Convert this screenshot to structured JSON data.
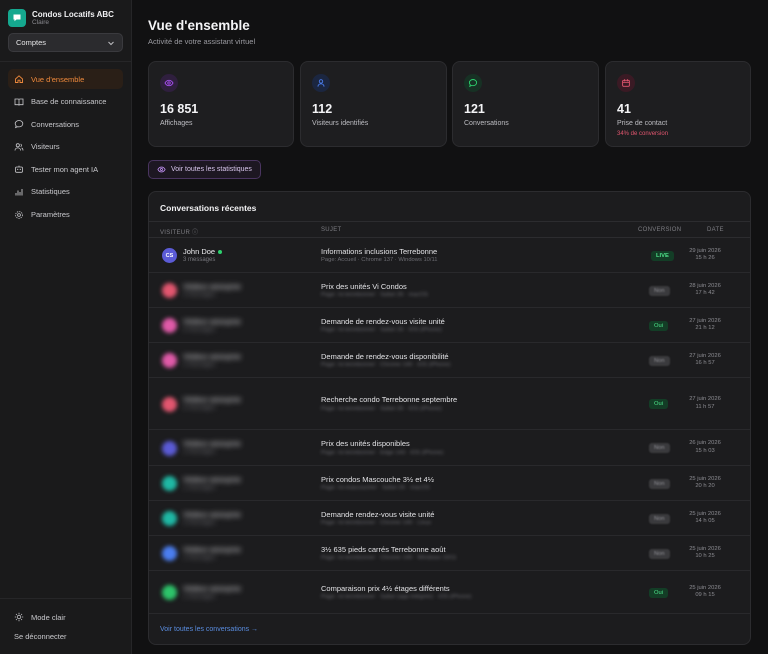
{
  "brand": {
    "name": "Condos Locatifs ABC",
    "subtitle": "Claire"
  },
  "account_select": {
    "value": "Comptes"
  },
  "nav": [
    {
      "label": "Vue d'ensemble",
      "icon": "home-icon",
      "active": true
    },
    {
      "label": "Base de connaissance",
      "icon": "book-icon",
      "active": false
    },
    {
      "label": "Conversations",
      "icon": "chat-icon",
      "active": false
    },
    {
      "label": "Visiteurs",
      "icon": "users-icon",
      "active": false
    },
    {
      "label": "Tester mon agent IA",
      "icon": "bot-icon",
      "active": false
    },
    {
      "label": "Statistiques",
      "icon": "stats-icon",
      "active": false
    },
    {
      "label": "Paramètres",
      "icon": "gear-icon",
      "active": false
    }
  ],
  "sidebar_bottom": {
    "theme_label": "Mode clair",
    "logout_label": "Se déconnecter"
  },
  "header": {
    "title": "Vue d'ensemble",
    "subtitle": "Activité de votre assistant virtuel"
  },
  "stats": [
    {
      "value": "16 851",
      "label": "Affichages",
      "icon": "eye-icon",
      "color": "#a64ff0"
    },
    {
      "value": "112",
      "label": "Visiteurs identifiés",
      "icon": "user-icon",
      "color": "#4b7ef0"
    },
    {
      "value": "121",
      "label": "Conversations",
      "icon": "message-icon",
      "color": "#2dd26e"
    },
    {
      "value": "41",
      "label": "Prise de contact",
      "extra": "34% de conversion",
      "icon": "calendar-icon",
      "color": "#e2566f"
    }
  ],
  "stats_link": "Voir toutes les statistiques",
  "recent": {
    "title": "Conversations récentes",
    "columns": {
      "visitor": "VISITEUR",
      "subject": "SUJET",
      "conversion": "CONVERSION",
      "date": "DATE"
    },
    "rows": [
      {
        "initials": "CS",
        "avatar_color": "#5b5bd6",
        "name": "John Doe",
        "meta": "3 messages",
        "online": true,
        "blurred": false,
        "subject": "Informations inclusions Terrebonne",
        "subject_meta": "Page: Accueil · Chrome 137 · Windows 10/11",
        "conversion": "LIVE",
        "conv_type": "live",
        "date": "29 juin 2026",
        "time": "15 h 26"
      },
      {
        "initials": "",
        "avatar_color": "#e2566f",
        "name": "Visiteur anonyme",
        "meta": "4 messages",
        "online": false,
        "blurred": true,
        "subject": "Prix des unités Vi Condos",
        "subject_meta": "Page: /vi-terrebonne/ · Safari 26 · macOS",
        "conversion": "Non",
        "conv_type": "non",
        "date": "28 juin 2026",
        "time": "17 h 42"
      },
      {
        "initials": "",
        "avatar_color": "#e05aa8",
        "name": "Visiteur anonyme",
        "meta": "6 messages",
        "online": false,
        "blurred": true,
        "subject": "Demande de rendez-vous visite unité",
        "subject_meta": "Page: /vi-terrebonne/ · Safari 26 · iOS (iPhone)",
        "conversion": "Oui",
        "conv_type": "oui",
        "date": "27 juin 2026",
        "time": "21 h 12"
      },
      {
        "initials": "",
        "avatar_color": "#e05aa8",
        "name": "Visiteur anonyme",
        "meta": "5 messages",
        "online": false,
        "blurred": true,
        "subject": "Demande de rendez-vous disponibilité",
        "subject_meta": "Page: /vi-terrebonne/ · Chrome 140 · iOS (iPhone)",
        "conversion": "Non",
        "conv_type": "non",
        "date": "27 juin 2026",
        "time": "16 h 57"
      },
      {
        "initials": "",
        "avatar_color": "#e2566f",
        "name": "Visiteur anonyme",
        "meta": "8 messages",
        "online": false,
        "blurred": true,
        "subject": "Recherche condo Terrebonne septembre",
        "subject_meta": "Page: /vi-terrebonne/ · Safari 26 · iOS (iPhone)",
        "conversion": "Oui",
        "conv_type": "oui",
        "date": "27 juin 2026",
        "time": "11 h 57"
      },
      {
        "initials": "",
        "avatar_color": "#5b5bd6",
        "name": "Visiteur anonyme",
        "meta": "3 messages",
        "online": false,
        "blurred": true,
        "subject": "Prix des unités disponibles",
        "subject_meta": "Page: /vi-terrebonne/ · Edge 143 · iOS (iPhone)",
        "conversion": "Non",
        "conv_type": "non",
        "date": "26 juin 2026",
        "time": "15 h 03"
      },
      {
        "initials": "",
        "avatar_color": "#1fb8a4",
        "name": "Visiteur anonyme",
        "meta": "2 messages",
        "online": false,
        "blurred": true,
        "subject": "Prix condos Mascouche 3½ et 4½",
        "subject_meta": "Page: /vi-mascouche/ · Safari 26 · macOS",
        "conversion": "Non",
        "conv_type": "non",
        "date": "25 juin 2026",
        "time": "20 h 20"
      },
      {
        "initials": "",
        "avatar_color": "#1fb8a4",
        "name": "Visiteur anonyme",
        "meta": "4 messages",
        "online": false,
        "blurred": true,
        "subject": "Demande rendez-vous visite unité",
        "subject_meta": "Page: /vi-terrebonne/ · Chrome 140 · Linux",
        "conversion": "Non",
        "conv_type": "non",
        "date": "25 juin 2026",
        "time": "14 h 05"
      },
      {
        "initials": "",
        "avatar_color": "#4b7ef0",
        "name": "Visiteur anonyme",
        "meta": "3 messages",
        "online": false,
        "blurred": true,
        "subject": "3½ 635 pieds carrés Terrebonne août",
        "subject_meta": "Page: /vi-terrebonne/ · Chrome 140 · Windows 10/11",
        "conversion": "Non",
        "conv_type": "non",
        "date": "25 juin 2026",
        "time": "10 h 25"
      },
      {
        "initials": "",
        "avatar_color": "#2dc46a",
        "name": "Visiteur anonyme",
        "meta": "5 messages",
        "online": false,
        "blurred": true,
        "subject": "Comparaison prix 4½ étages différents",
        "subject_meta": "Page: /vi-terrebonne/ · Safari (app intégrée) · iOS (iPhone)",
        "conversion": "Oui",
        "conv_type": "oui",
        "date": "25 juin 2026",
        "time": "09 h 15"
      }
    ],
    "view_all": "Voir toutes les conversations →"
  }
}
